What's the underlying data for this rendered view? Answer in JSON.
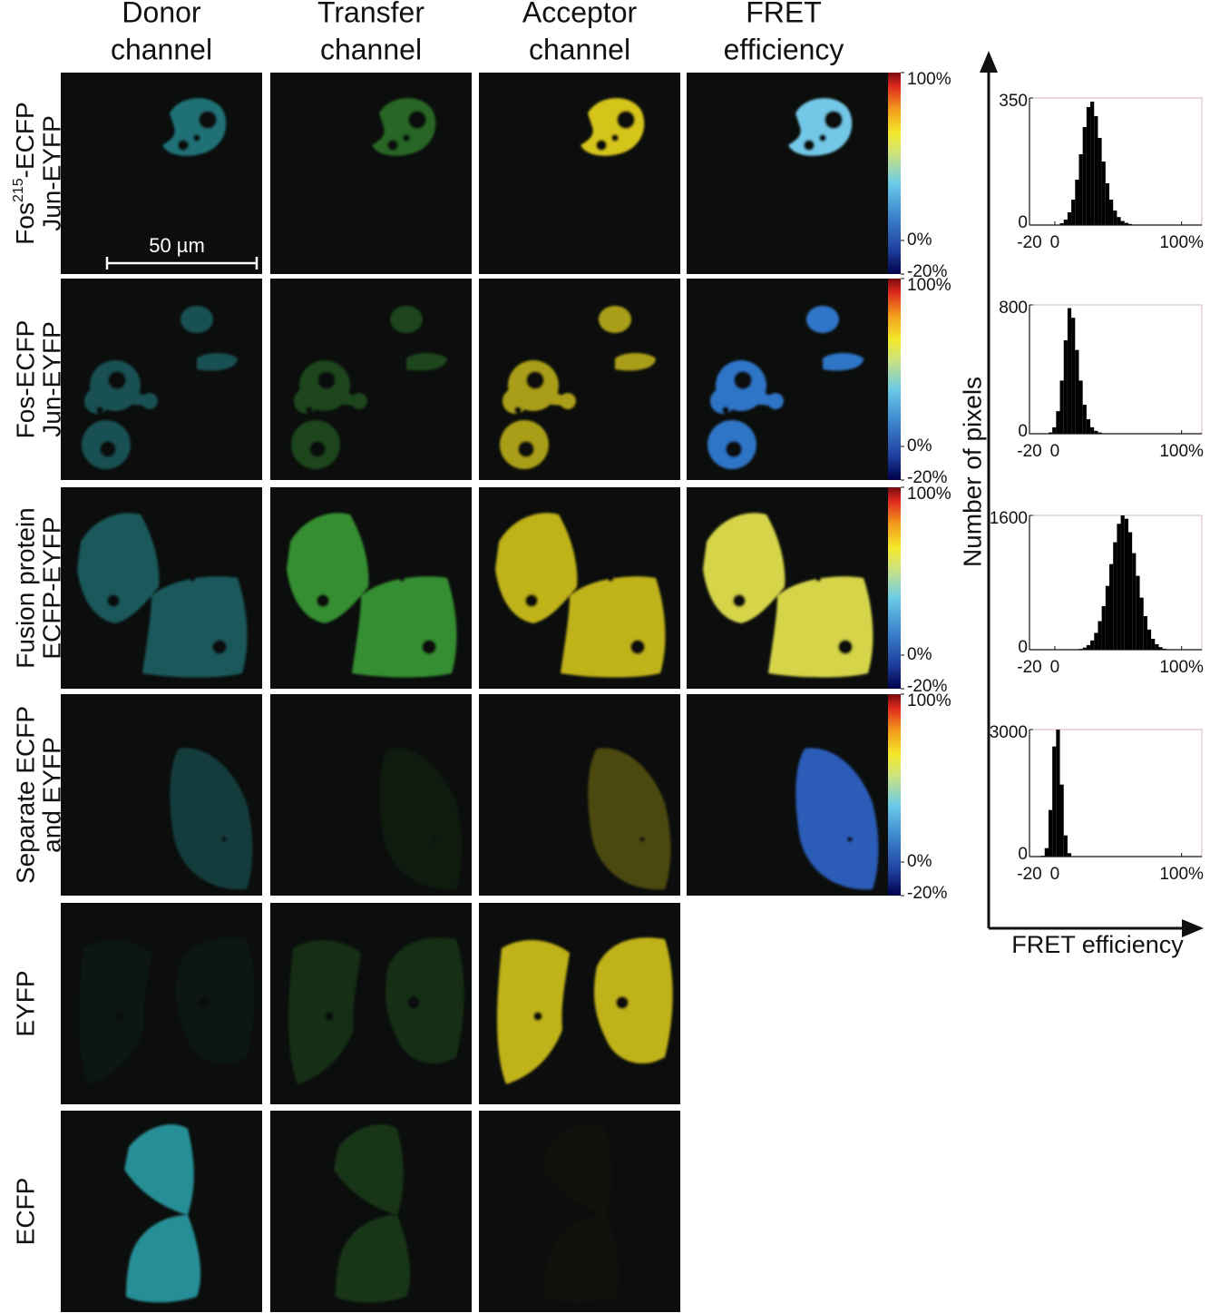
{
  "column_headers": [
    [
      "Donor",
      "channel"
    ],
    [
      "Transfer",
      "channel"
    ],
    [
      "Acceptor",
      "channel"
    ],
    [
      "FRET",
      "efficiency"
    ]
  ],
  "rows": [
    {
      "lines": [
        {
          "text": "Fos",
          "sup": "215",
          "rest": "-ECFP"
        },
        "Jun-EYFP"
      ]
    },
    {
      "lines": [
        "Fos-ECFP",
        "Jun-EYFP"
      ]
    },
    {
      "lines": [
        "Fusion protein",
        "ECFP-EYFP"
      ]
    },
    {
      "lines": [
        "Separate ECFP",
        "and EYFP"
      ]
    },
    {
      "lines": [
        "EYFP"
      ]
    },
    {
      "lines": [
        "ECFP"
      ]
    }
  ],
  "scale_bar": "50 µm",
  "colorbar": {
    "lim": [
      -20,
      100
    ],
    "ticks": [
      {
        "value": 100,
        "label": "100%"
      },
      {
        "value": 0,
        "label": "0%"
      },
      {
        "value": -20,
        "label": "-20%"
      }
    ]
  },
  "histograms": {
    "y_label": "Number of pixels",
    "x_label": "FRET efficiency",
    "color": "#000000",
    "xlim": [
      -20,
      116
    ],
    "xticks": [
      -20,
      0,
      {
        "value": 100,
        "label": "100%"
      }
    ],
    "bins": [
      -20,
      -17,
      -14,
      -11,
      -8,
      -5,
      -2,
      1,
      4,
      7,
      10,
      13,
      16,
      19,
      22,
      25,
      28,
      31,
      34,
      37,
      40,
      43,
      46,
      49,
      52,
      55,
      58,
      61,
      64,
      67,
      70,
      73,
      76,
      79,
      82,
      85,
      88,
      91,
      94,
      97,
      100
    ],
    "panels": [
      {
        "ylim": [
          0,
          350
        ],
        "yticks": [
          0,
          350
        ],
        "values": [
          0,
          0,
          0,
          0,
          0,
          0,
          0,
          0,
          5,
          15,
          35,
          70,
          125,
          195,
          270,
          325,
          340,
          300,
          240,
          175,
          115,
          70,
          40,
          22,
          11,
          6,
          3,
          1,
          0,
          0,
          0,
          0,
          0,
          0,
          0,
          0,
          0,
          0,
          0,
          0
        ]
      },
      {
        "ylim": [
          0,
          800
        ],
        "yticks": [
          0,
          800
        ],
        "values": [
          0,
          0,
          0,
          0,
          1,
          8,
          40,
          140,
          330,
          580,
          780,
          720,
          520,
          330,
          180,
          90,
          40,
          18,
          8,
          3,
          1,
          0,
          0,
          0,
          0,
          0,
          0,
          0,
          0,
          0,
          0,
          0,
          0,
          0,
          0,
          0,
          0,
          0,
          0,
          0
        ]
      },
      {
        "ylim": [
          0,
          1600
        ],
        "yticks": [
          0,
          1600
        ],
        "values": [
          0,
          0,
          0,
          0,
          0,
          0,
          0,
          0,
          0,
          0,
          0,
          0,
          0,
          10,
          25,
          55,
          110,
          200,
          340,
          520,
          760,
          1020,
          1280,
          1500,
          1600,
          1560,
          1400,
          1150,
          880,
          620,
          400,
          240,
          130,
          65,
          30,
          12,
          5,
          2,
          0,
          0
        ]
      },
      {
        "ylim": [
          0,
          3000
        ],
        "yticks": [
          0,
          3000
        ],
        "values": [
          0,
          0,
          0,
          20,
          200,
          1100,
          2600,
          3000,
          1700,
          500,
          80,
          10,
          0,
          0,
          0,
          0,
          0,
          0,
          0,
          0,
          0,
          0,
          0,
          0,
          0,
          0,
          0,
          0,
          0,
          0,
          0,
          0,
          0,
          0,
          0,
          0,
          0,
          0,
          0,
          0
        ]
      }
    ]
  }
}
